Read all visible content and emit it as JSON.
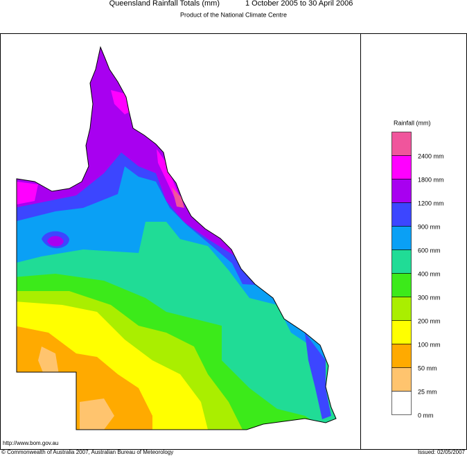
{
  "header": {
    "title": "Queensland Rainfall Totals (mm)",
    "period": "1 October 2005 to 30 April 2006",
    "subtitle": "Product of the National Climate Centre"
  },
  "legend": {
    "title": "Rainfall (mm)",
    "items": [
      {
        "label": "2400 mm",
        "color": "#f0559c"
      },
      {
        "label": "1800 mm",
        "color": "#ff00ff"
      },
      {
        "label": "1200 mm",
        "color": "#a800f0"
      },
      {
        "label": "900 mm",
        "color": "#3c46ff"
      },
      {
        "label": "600 mm",
        "color": "#0aa0f5"
      },
      {
        "label": "400 mm",
        "color": "#20dc96"
      },
      {
        "label": "300 mm",
        "color": "#3cea1a"
      },
      {
        "label": "200 mm",
        "color": "#aaee00"
      },
      {
        "label": "100 mm",
        "color": "#ffff00"
      },
      {
        "label": "50 mm",
        "color": "#ffaa00"
      },
      {
        "label": "25 mm",
        "color": "#ffc46e"
      },
      {
        "label": "0 mm",
        "color": "#ffffff"
      }
    ]
  },
  "footer": {
    "url": "http://www.bom.gov.au",
    "copyright": "© Commonwealth of Australia 2007, Australian Bureau of Meteorology",
    "issued": "Issued: 02/05/2007"
  }
}
